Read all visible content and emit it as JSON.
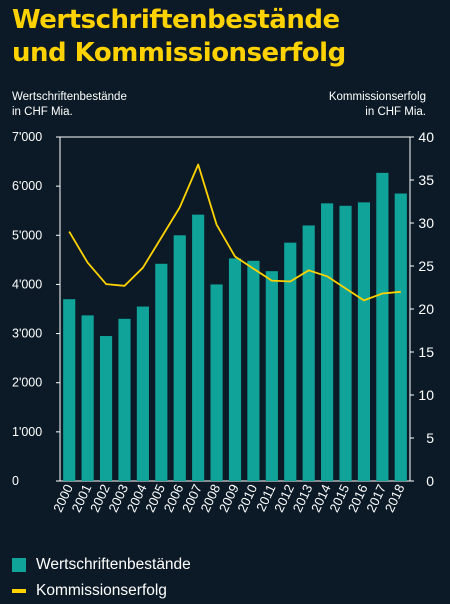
{
  "title_line1": "Wertschriftenbestände",
  "title_line2": "und Kommissionserfolg",
  "left_axis_label_line1": "Wertschriftenbestände",
  "left_axis_label_line2": "in CHF Mia.",
  "right_axis_label_line1": "Kommissionserfolg",
  "right_axis_label_line2": "in CHF Mia.",
  "colors": {
    "bars": "#10a39a",
    "line": "#ffd200",
    "title": "#ffd200",
    "background": "#0b1a26"
  },
  "chart_data": {
    "type": "bar",
    "categories": [
      "2000",
      "2001",
      "2002",
      "2003",
      "2004",
      "2005",
      "2006",
      "2007",
      "2008",
      "2009",
      "2010",
      "2011",
      "2012",
      "2013",
      "2014",
      "2015",
      "2016",
      "2017",
      "2018"
    ],
    "series": [
      {
        "name": "Wertschriftenbestände",
        "type": "bar",
        "axis": "left",
        "values": [
          3700,
          3370,
          2950,
          3300,
          3550,
          4420,
          5000,
          5420,
          4000,
          4530,
          4480,
          4270,
          4850,
          5200,
          5650,
          5600,
          5670,
          6270,
          5850
        ]
      },
      {
        "name": "Kommissionserfolg",
        "type": "line",
        "axis": "right",
        "values": [
          29.0,
          25.4,
          22.9,
          22.7,
          24.8,
          28.3,
          31.8,
          36.8,
          29.8,
          26.1,
          24.7,
          23.3,
          23.2,
          24.5,
          23.8,
          22.4,
          21.0,
          21.8,
          22.0
        ]
      }
    ],
    "y_left": {
      "min": 0,
      "max": 7000,
      "ticks": [
        "0",
        "1'000",
        "2'000",
        "3'000",
        "4'000",
        "5'000",
        "6'000",
        "7'000"
      ]
    },
    "y_right": {
      "min": 0,
      "max": 40,
      "ticks": [
        "0",
        "5",
        "10",
        "15",
        "20",
        "25",
        "30",
        "35",
        "40"
      ]
    },
    "grid": false,
    "legend_position": "bottom-left"
  }
}
